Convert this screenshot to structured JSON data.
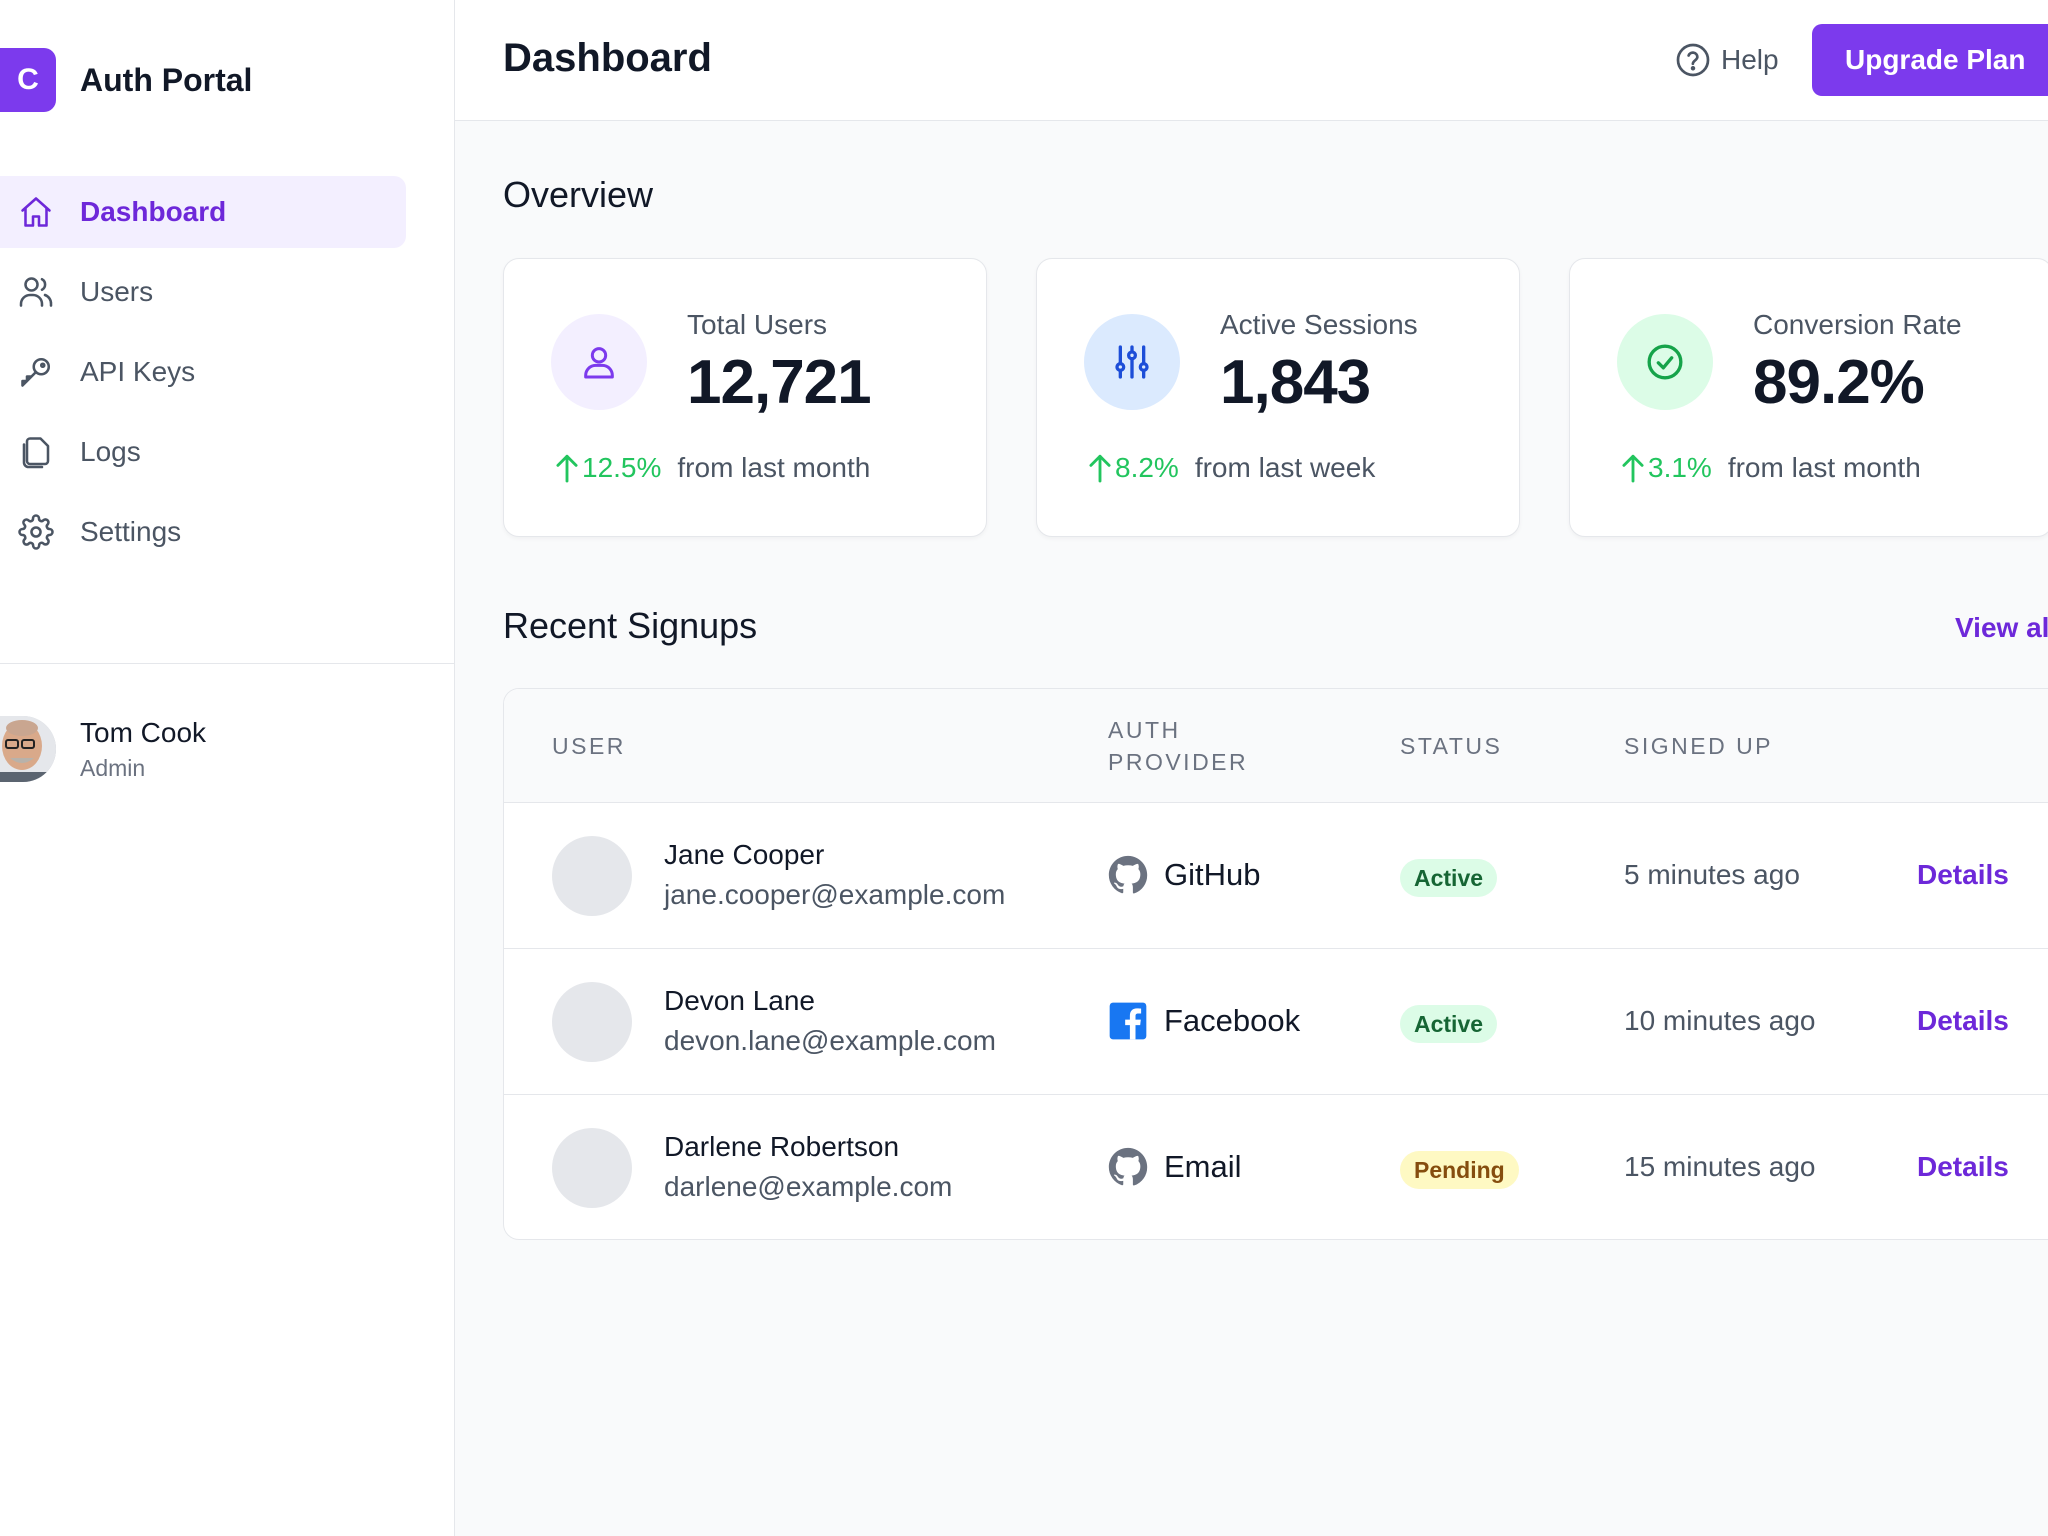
{
  "brand": {
    "logo_letter": "C",
    "name": "Auth Portal"
  },
  "sidebar": {
    "items": [
      {
        "label": "Dashboard",
        "icon": "home-icon",
        "active": true
      },
      {
        "label": "Users",
        "icon": "users-icon"
      },
      {
        "label": "API Keys",
        "icon": "key-icon"
      },
      {
        "label": "Logs",
        "icon": "logs-icon"
      },
      {
        "label": "Settings",
        "icon": "gear-icon"
      }
    ],
    "user": {
      "name": "Tom Cook",
      "role": "Admin"
    }
  },
  "header": {
    "title": "Dashboard",
    "help_label": "Help",
    "upgrade_label": "Upgrade Plan"
  },
  "overview": {
    "title": "Overview",
    "cards": [
      {
        "label": "Total Users",
        "value": "12,721",
        "change": "12.5%",
        "period": "from last month",
        "icon": "user-icon",
        "icon_bg": "#f3efff",
        "icon_color": "#7c3aed"
      },
      {
        "label": "Active Sessions",
        "value": "1,843",
        "change": "8.2%",
        "period": "from last week",
        "icon": "sliders-icon",
        "icon_bg": "#dbeafe",
        "icon_color": "#1d4ed8"
      },
      {
        "label": "Conversion Rate",
        "value": "89.2%",
        "change": "3.1%",
        "period": "from last month",
        "icon": "check-circle-icon",
        "icon_bg": "#dcfce7",
        "icon_color": "#16a34a"
      }
    ]
  },
  "signups": {
    "title": "Recent Signups",
    "view_all": "View al",
    "columns": [
      "USER",
      "AUTH PROVIDER",
      "STATUS",
      "SIGNED UP"
    ],
    "rows": [
      {
        "name": "Jane Cooper",
        "email": "jane.cooper@example.com",
        "provider": "GitHub",
        "provider_icon": "github-icon",
        "status": "Active",
        "signed_up": "5 minutes ago",
        "action": "Details"
      },
      {
        "name": "Devon Lane",
        "email": "devon.lane@example.com",
        "provider": "Facebook",
        "provider_icon": "facebook-icon",
        "status": "Active",
        "signed_up": "10 minutes ago",
        "action": "Details"
      },
      {
        "name": "Darlene Robertson",
        "email": "darlene@example.com",
        "provider": "Email",
        "provider_icon": "github-icon",
        "status": "Pending",
        "signed_up": "15 minutes ago",
        "action": "Details"
      }
    ]
  },
  "colors": {
    "accent": "#7c3aed",
    "positive": "#22c55e"
  }
}
